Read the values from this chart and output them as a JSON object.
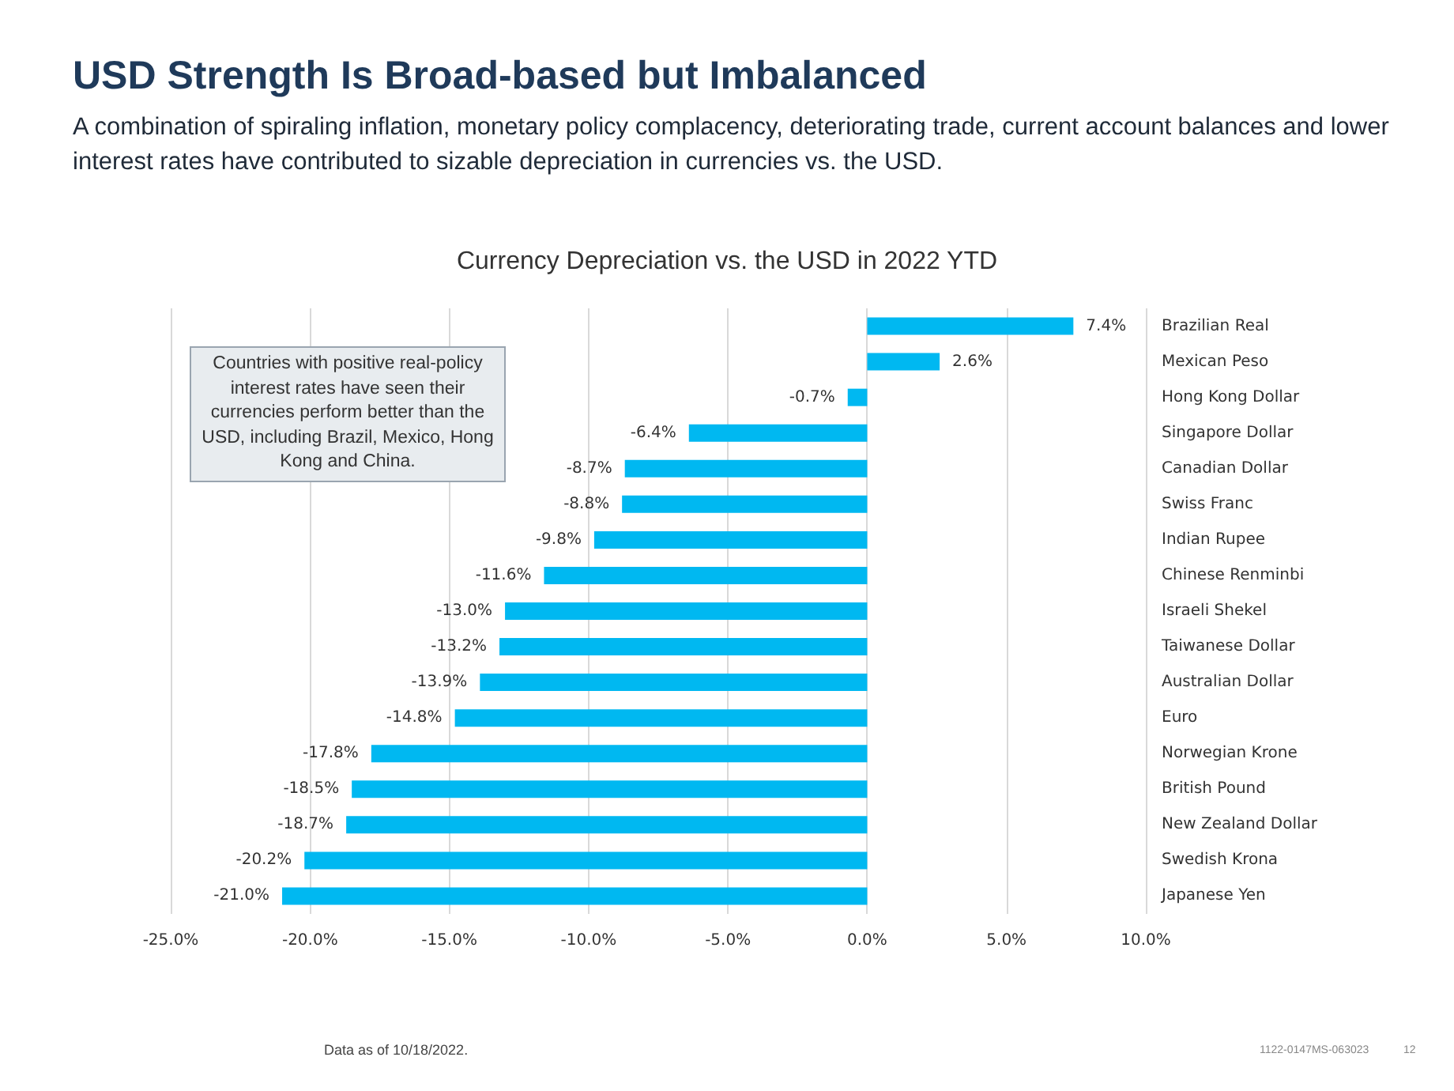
{
  "chart_data": {
    "type": "bar",
    "orientation": "horizontal",
    "title": "USD Strength Is Broad-based but Imbalanced",
    "subtitle": "A combination of spiraling inflation, monetary policy complacency, deteriorating trade, current account balances and lower interest rates have contributed to sizable depreciation in currencies vs. the USD.",
    "annotations": [
      "Currency Depreciation vs. the USD in 2022 YTD",
      "Countries with positive real-policy interest rates have seen their currencies perform better than the USD, including Brazil, Mexico, Hong Kong and China.",
      "Data as of 10/18/2022.",
      "1122-0147MS-063023",
      "12"
    ],
    "categories": [
      "Brazilian Real",
      "Mexican Peso",
      "Hong Kong Dollar",
      "Singapore Dollar",
      "Canadian Dollar",
      "Swiss Franc",
      "Indian Rupee",
      "Chinese Renminbi",
      "Israeli Shekel",
      "Taiwanese Dollar",
      "Australian Dollar",
      "Euro",
      "Norwegian Krone",
      "British Pound",
      "New Zealand Dollar",
      "Swedish Krona",
      "Japanese Yen"
    ],
    "values": [
      7.4,
      2.6,
      -0.7,
      -6.4,
      -8.7,
      -8.8,
      -9.8,
      -11.6,
      -13.0,
      -13.2,
      -13.9,
      -14.8,
      -17.8,
      -18.5,
      -18.7,
      -20.2,
      -21.0
    ],
    "value_labels": [
      "7.4%",
      "2.6%",
      "-0.7%",
      "-6.4%",
      "-8.7%",
      "-8.8%",
      "-9.8%",
      "-11.6%",
      "-13.0%",
      "-13.2%",
      "-13.9%",
      "-14.8%",
      "-17.8%",
      "-18.5%",
      "-18.7%",
      "-20.2%",
      "-21.0%"
    ],
    "color": "#00b8f1",
    "xlim": [
      -25,
      10
    ],
    "xticks": [
      {
        "value": -25,
        "label": "-25.0%"
      },
      {
        "value": -20,
        "label": "-20.0%"
      },
      {
        "value": -15,
        "label": "-15.0%"
      },
      {
        "value": -10,
        "label": "-10.0%"
      },
      {
        "value": -5,
        "label": "-5.0%"
      },
      {
        "value": 0,
        "label": "0.0%"
      },
      {
        "value": 5,
        "label": "5.0%"
      },
      {
        "value": 10,
        "label": "10.0%"
      }
    ],
    "grid": "x"
  }
}
